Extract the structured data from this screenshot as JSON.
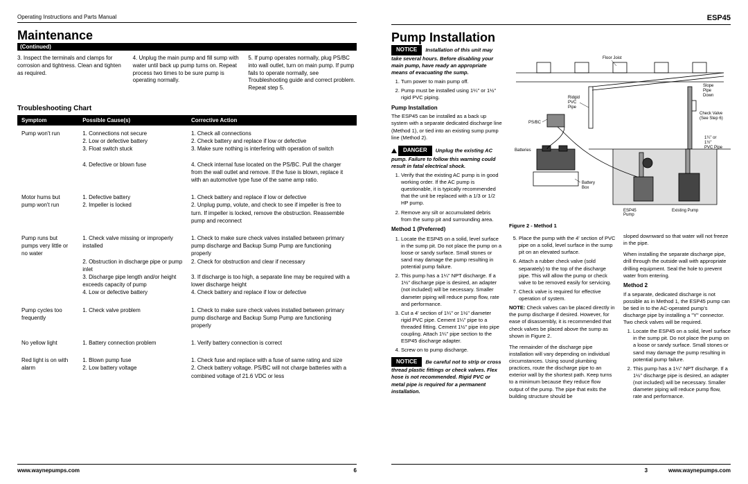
{
  "left": {
    "header": "Operating Instructions and Parts Manual",
    "title": "Maintenance",
    "continued": "(Continued)",
    "intro": {
      "c1": "3. Inspect the terminals and clamps for corrosion and tightness. Clean and tighten as required.",
      "c2": "4. Unplug the main pump and fill sump with water until back up pump turns on. Repeat process two times to be sure pump is operating normally.",
      "c3": "5. If pump operates normally, plug PS/BC into wall outlet, turn on main pump. If pump fails to operate normally, see Troubleshooting guide and correct problem. Repeat step 5."
    },
    "ts_title": "Troubleshooting Chart",
    "th1": "Symptom",
    "th2": "Possible Cause(s)",
    "th3": "Corrective Action",
    "rows": [
      {
        "s": "Pump won't run",
        "c": "1. Connections not secure\n2. Low or defective battery\n3. Float switch stuck\n\n4. Defective or blown fuse",
        "a": "1. Check all connections\n2. Check battery and replace if low or defective\n3. Make sure nothing is interfering with operation of switch\n\n4. Check internal fuse located on the PS/BC. Pull the charger from the wall outlet and remove. If the fuse is blown, replace it with an automotive type fuse of the same amp ratio."
      },
      {
        "s": "Motor hums but pump won't run",
        "c": "1. Defective battery\n2. Impeller is locked",
        "a": "1. Check battery and replace if low or defective\n2. Unplug pump, volute, and check to see if impeller is free to turn. If impeller is locked, remove the obstruction. Reassemble pump and reconnect"
      },
      {
        "s": "Pump runs but pumps very little or no water",
        "c": "1. Check valve missing or improperly installed\n\n2. Obstruction in discharge pipe or pump inlet\n3. Discharge pipe length and/or height exceeds capacity of pump\n4. Low or defective battery",
        "a": "1. Check to make sure check valves installed between primary pump discharge and Backup Sump Pump are functioning properly\n2. Check for obstruction and clear if necessary\n\n3. If discharge is too high, a separate line may be required with a lower discharge height\n4. Check battery and replace if low or defective"
      },
      {
        "s": "Pump cycles too frequently",
        "c": "1. Check valve problem",
        "a": "1. Check to make sure check valves installed between primary pump discharge and Backup Sump Pump are functioning properly"
      },
      {
        "s": "No yellow light",
        "c": "1. Battery connection problem",
        "a": "1. Verify battery connection is correct"
      },
      {
        "s": "Red light is on with alarm",
        "c": "1. Blown pump fuse\n2. Low battery voltage",
        "a": "1. Check fuse and replace with a fuse of same rating and size\n2. Check battery voltage. PS/BC will not charge batteries with a combined voltage of 21.6 VDC or less"
      }
    ],
    "footer_url": "www.waynepumps.com",
    "page_num": "6"
  },
  "right": {
    "model": "ESP45",
    "title": "Pump Installation",
    "notice1": "NOTICE",
    "notice1_text": "Installation of this unit may take several hours. Before disabling your main pump, have ready an appropriate means of evacuating the sump.",
    "step1": "Turn power to main pump off.",
    "step2": "Pump must be installed using 1¼\" or 1½\" rigid PVC piping.",
    "pi_head": "Pump Installation",
    "pi_text": "The ESP45 can be installed as a back up system with a separate dedicated discharge line (Method 1), or tied into an existing sump pump line (Method 2).",
    "danger": "DANGER",
    "danger_text": "Unplug the existing AC pump. Failure to follow this warning could result in fatal electrical shock.",
    "verify1": "Verify that the existing AC pump is in good working order. If the AC pump is questionable, it is typically recommended that the unit be replaced with a 1/3 or 1/2 HP pump.",
    "verify2": "Remove any silt or accumulated debris from the sump pit and surrounding area.",
    "m1_head": "Method 1 (Preferred)",
    "m1_1": "Locate the ESP45 on a solid, level surface in the sump pit. Do not place the pump on a loose or sandy surface. Small stones or sand may damage the pump resulting in potential pump failure.",
    "m1_2": "This pump has a 1¼\" NPT discharge. If a 1½\" discharge pipe is desired, an adapter (not included) will be necessary. Smaller diameter piping will reduce pump flow, rate and performance.",
    "m1_3": "Cut a 4' section of 1¼\" or 1½\" diameter rigid PVC pipe. Cement 1¼\" pipe to a threaded fitting. Cement 1½\" pipe into pipe coupling. Attach 1¼\" pipe section to the ESP45 discharge adapter.",
    "m1_4": "Screw on to pump discharge.",
    "notice2": "NOTICE",
    "notice2_text": "Be careful not to strip or cross thread plastic fittings or check valves. Flex hose is not recommended. Rigid PVC or metal pipe is required for a permanent installation.",
    "diagram_labels": {
      "floor_joist": "Floor Joist",
      "rigid_pvc": "Ridgid PVC Pipe",
      "psbc": "PS/BC",
      "batteries": "Batteries",
      "battery_box": "Battery Box",
      "esp45": "ESP45 Pump",
      "existing": "Existing Pump",
      "slope": "Slope Pipe Down",
      "check_valve": "Check Valve (See Step 6)",
      "pvc_pipe": "1¼\" or 1½\" PVC Pipe"
    },
    "fig_caption": "Figure 2 - Method 1",
    "m1_5": "Place the pump with the 4' section of PVC pipe on a solid, level surface in the sump pit on an elevated surface.",
    "m1_6": "Attach a rubber check valve (sold separately) to the top of the discharge pipe. This will allow the pump or check valve to be removed easily for servicing.",
    "m1_7": "Check valve is required for effective operation of system.",
    "note_cv": "NOTE: Check valves can be placed directly in the pump discharge if desired. However, for ease of disassembly, it is recommended that check valves be placed above the sump as shown in Figure 2.",
    "remainder": "The remainder of the discharge pipe installation will vary depending on individual circumstances. Using sound plumbing practices, route the discharge pipe to an exterior wall by the shortest path. Keep turns to a minimum because they reduce flow output of the pump. The pipe that exits the building structure should be",
    "slope_text": "sloped downward so that water will not freeze in the pipe.",
    "sep_text": "When installing the separate discharge pipe, drill through the outside wall with appropriate drilling equipment. Seal the hole to prevent water from entering.",
    "m2_head": "Method 2",
    "m2_intro": "If a separate, dedicated discharge is not possible as in Method 1, the ESP45 pump can be tied in to the AC-operated pump's discharge pipe by installing a \"Y\" connector. Two check valves will be required.",
    "m2_1": "Locate the ESP45 on a solid, level surface in the sump pit. Do not place the pump on a loose or sandy surface. Small stones or sand may damage the pump resulting in potential pump failure.",
    "m2_2": "This pump has a 1¼\" NPT discharge. If a 1½\" discharge pipe is desired, an adapter (not included) will be necessary. Smaller diameter piping will reduce pump flow, rate and performance.",
    "footer_url": "www.waynepumps.com",
    "page_num": "3"
  }
}
